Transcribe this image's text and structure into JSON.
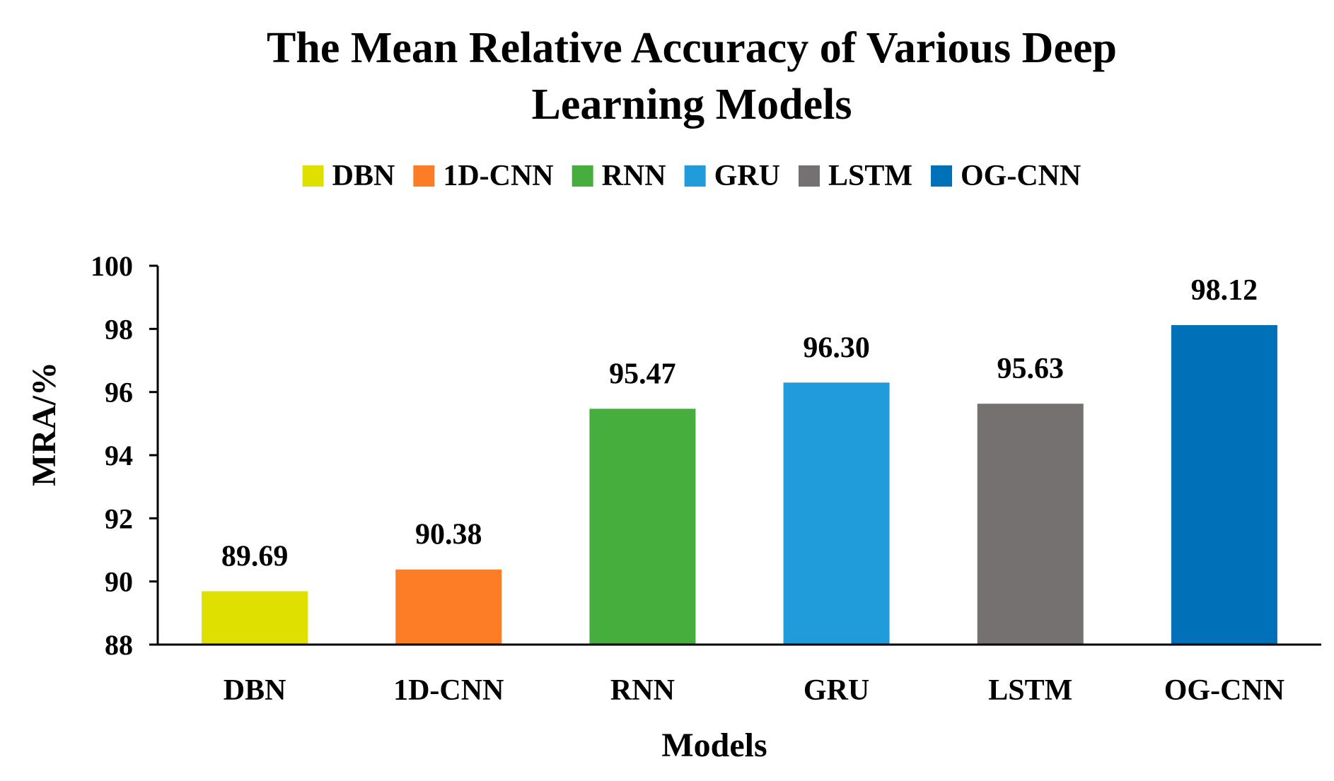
{
  "chart_data": {
    "type": "bar",
    "title_lines": [
      "The Mean Relative Accuracy of Various Deep",
      "Learning Models"
    ],
    "xlabel": "Models",
    "ylabel": "MRA/%",
    "ylim": [
      88,
      100
    ],
    "yticks": [
      88,
      90,
      92,
      94,
      96,
      98,
      100
    ],
    "grid": false,
    "legend_position": "top",
    "categories": [
      "DBN",
      "1D-CNN",
      "RNN",
      "GRU",
      "LSTM",
      "OG-CNN"
    ],
    "values": [
      89.69,
      90.38,
      95.47,
      96.3,
      95.63,
      98.12
    ],
    "value_labels": [
      "89.69",
      "90.38",
      "95.47",
      "96.30",
      "95.63",
      "98.12"
    ],
    "colors": [
      "#dfe000",
      "#fc7d26",
      "#45ae3c",
      "#1f9cd9",
      "#767171",
      "#0070b8"
    ],
    "legend": [
      "DBN",
      "1D-CNN",
      "RNN",
      "GRU",
      "LSTM",
      "OG-CNN"
    ]
  }
}
